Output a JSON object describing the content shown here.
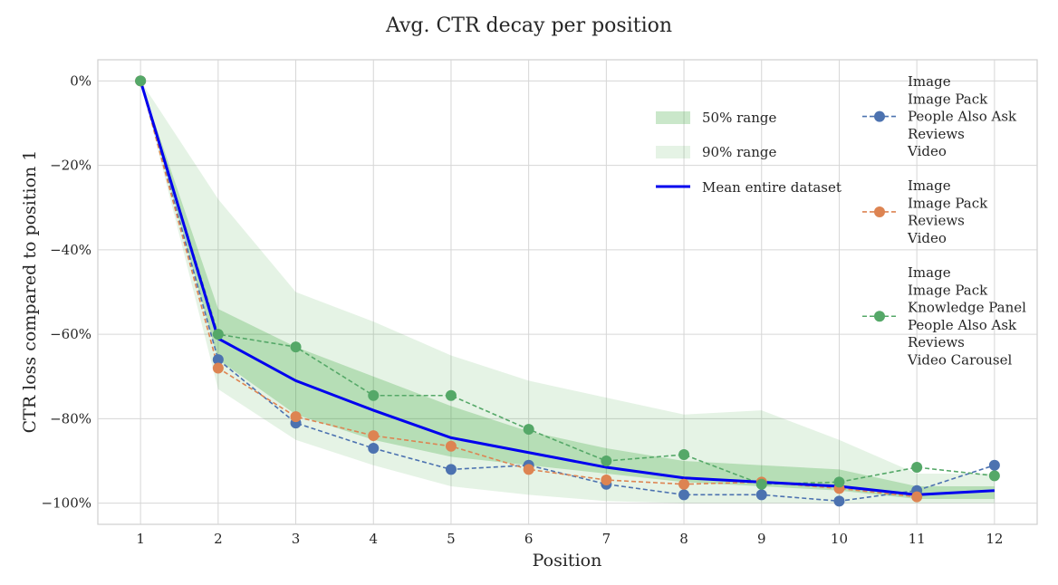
{
  "chart_data": {
    "type": "line",
    "title": "Avg. CTR decay per position",
    "xlabel": "Position",
    "ylabel": "CTR loss compared to position 1",
    "x": [
      1,
      2,
      3,
      4,
      5,
      6,
      7,
      8,
      9,
      10,
      11,
      12
    ],
    "xlim": [
      0.45,
      12.55
    ],
    "ylim": [
      -105,
      5
    ],
    "yticks": [
      0,
      -20,
      -40,
      -60,
      -80,
      -100
    ],
    "ytick_labels": [
      "0%",
      "−20%",
      "−40%",
      "−60%",
      "−80%",
      "−100%"
    ],
    "grid": true,
    "bands": [
      {
        "name": "50% range",
        "color": "#2ca02c",
        "opacity": 0.25,
        "lower": [
          0,
          -66,
          -79,
          -85,
          -89,
          -91,
          -93,
          -95,
          -96,
          -97,
          -99,
          -99
        ],
        "upper": [
          0,
          -54,
          -63,
          -70,
          -77,
          -83,
          -87,
          -90,
          -91,
          -92,
          -96,
          -96
        ]
      },
      {
        "name": "90% range",
        "color": "#2ca02c",
        "opacity": 0.12,
        "lower": [
          0,
          -73,
          -85,
          -91,
          -96,
          -98,
          -99.5,
          -100,
          -100,
          -100,
          -100,
          -100
        ],
        "upper": [
          0,
          -28,
          -50,
          -57,
          -65,
          -71,
          -75,
          -79,
          -78,
          -85,
          -93,
          -93
        ]
      }
    ],
    "mean": {
      "name": "Mean entire dataset",
      "color": "#0000ee",
      "values": [
        0,
        -61,
        -71,
        -78,
        -84.5,
        -88,
        -91.5,
        -94,
        -95,
        -96,
        -98,
        -97
      ]
    },
    "series": [
      {
        "name": "Image / Image Pack / People Also Ask / Reviews / Video",
        "legend_lines": [
          "Image",
          "Image Pack",
          "People Also Ask",
          "Reviews",
          "Video"
        ],
        "color": "#4c72b0",
        "values": [
          0,
          -66,
          -81,
          -87,
          -92,
          -91,
          -95.5,
          -98,
          -98,
          -99.5,
          -97,
          -91
        ]
      },
      {
        "name": "Image / Image Pack / Reviews / Video",
        "legend_lines": [
          "Image",
          "Image Pack",
          "Reviews",
          "Video"
        ],
        "color": "#dd8452",
        "values": [
          0,
          -68,
          -79.5,
          -84,
          -86.5,
          -92,
          -94.5,
          -95.5,
          -95,
          -96.5,
          -98.5,
          null
        ]
      },
      {
        "name": "Image / Image Pack / Knowledge Panel / People Also Ask / Reviews / Video Carousel",
        "legend_lines": [
          "Image",
          "Image Pack",
          "Knowledge Panel",
          "People Also Ask",
          "Reviews",
          "Video Carousel"
        ],
        "color": "#55a868",
        "values": [
          0,
          -60,
          -63,
          -74.5,
          -74.5,
          -82.5,
          -90,
          -88.5,
          -95.5,
          -95,
          -91.5,
          -93.5
        ]
      }
    ],
    "legend_position": "top-right"
  }
}
